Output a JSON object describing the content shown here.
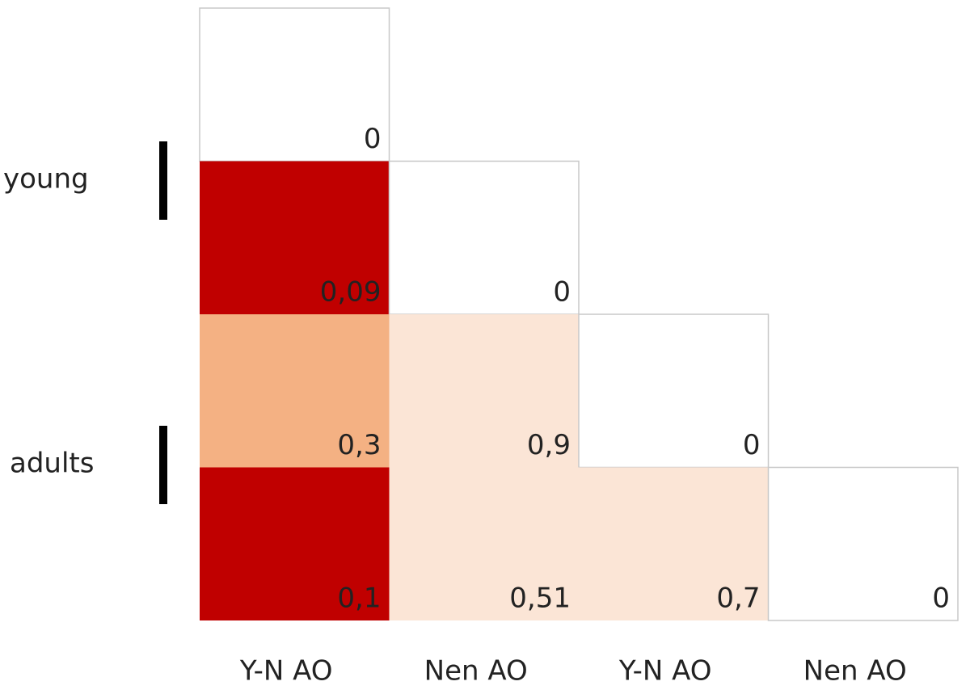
{
  "chart_data": {
    "type": "heatmap",
    "columns": [
      "Y-N AO",
      "Nen AO",
      "Y-N AO",
      "Nen AO"
    ],
    "row_groups": [
      "young",
      "adults"
    ],
    "values": [
      [
        0,
        null,
        null,
        null
      ],
      [
        0.09,
        0,
        null,
        null
      ],
      [
        0.3,
        0.9,
        0,
        null
      ],
      [
        0.1,
        0.51,
        0.7,
        0
      ]
    ],
    "value_labels": [
      [
        "0",
        null,
        null,
        null
      ],
      [
        "0,09",
        "0",
        null,
        null
      ],
      [
        "0,3",
        "0,9",
        "0",
        null
      ],
      [
        "0,1",
        "0,51",
        "0,7",
        "0"
      ]
    ],
    "colors": [
      [
        "#ffffff",
        null,
        null,
        null
      ],
      [
        "#c00000",
        "#ffffff",
        null,
        null
      ],
      [
        "#f4b183",
        "#fbe5d6",
        "#ffffff",
        null
      ],
      [
        "#c00000",
        "#fbe5d6",
        "#fbe5d6",
        "#ffffff"
      ]
    ]
  }
}
